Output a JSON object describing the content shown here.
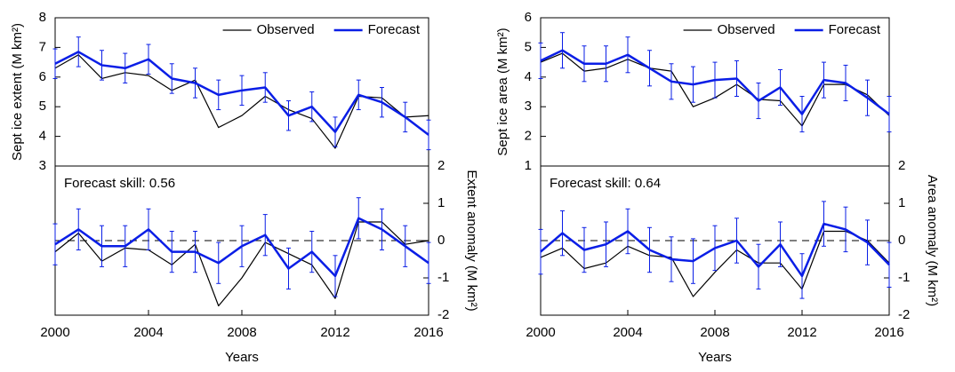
{
  "chart_data": [
    {
      "type": "line",
      "ylabel": "Sept ice extent (M km²)",
      "x": [
        2000,
        2001,
        2002,
        2003,
        2004,
        2005,
        2006,
        2007,
        2008,
        2009,
        2010,
        2011,
        2012,
        2013,
        2014,
        2015,
        2016
      ],
      "xlim": [
        2000,
        2016
      ],
      "ylim": [
        3,
        8
      ],
      "yticks": [
        3,
        4,
        5,
        6,
        7,
        8
      ],
      "legend": "upper right",
      "series": [
        {
          "name": "Observed",
          "color": "#000000",
          "values": [
            6.3,
            6.75,
            5.95,
            6.15,
            6.05,
            5.55,
            5.9,
            4.3,
            4.7,
            5.35,
            4.9,
            4.6,
            3.6,
            5.35,
            5.3,
            4.65,
            4.7
          ]
        },
        {
          "name": "Forecast",
          "color": "#0a1ee6",
          "values": [
            6.45,
            6.85,
            6.4,
            6.3,
            6.6,
            5.95,
            5.8,
            5.4,
            5.55,
            5.65,
            4.7,
            5.0,
            4.15,
            5.4,
            5.15,
            4.65,
            4.05
          ],
          "errors": [
            0.5,
            0.5,
            0.5,
            0.5,
            0.5,
            0.5,
            0.5,
            0.5,
            0.5,
            0.5,
            0.5,
            0.5,
            0.5,
            0.5,
            0.5,
            0.5,
            0.5
          ]
        }
      ]
    },
    {
      "type": "line",
      "ylabel": "Extent anomaly (M km²)",
      "xlabel": "Years",
      "annotation": "Forecast skill: 0.56",
      "x": [
        2000,
        2001,
        2002,
        2003,
        2004,
        2005,
        2006,
        2007,
        2008,
        2009,
        2010,
        2011,
        2012,
        2013,
        2014,
        2015,
        2016
      ],
      "xlim": [
        2000,
        2016
      ],
      "xticks": [
        2000,
        2004,
        2008,
        2012,
        2016
      ],
      "ylim": [
        -2,
        2
      ],
      "yticks": [
        -2,
        -1,
        0,
        1,
        2
      ],
      "hline": 0,
      "series": [
        {
          "color": "#000000",
          "values": [
            -0.3,
            0.2,
            -0.55,
            -0.2,
            -0.25,
            -0.65,
            -0.1,
            -1.75,
            -1.0,
            -0.05,
            -0.35,
            -0.65,
            -1.55,
            0.5,
            0.5,
            -0.1,
            0.0
          ]
        },
        {
          "color": "#0a1ee6",
          "values": [
            -0.1,
            0.3,
            -0.15,
            -0.15,
            0.3,
            -0.3,
            -0.3,
            -0.6,
            -0.15,
            0.15,
            -0.75,
            -0.3,
            -0.95,
            0.6,
            0.3,
            -0.15,
            -0.6
          ],
          "errors": [
            0.55,
            0.55,
            0.55,
            0.55,
            0.55,
            0.55,
            0.55,
            0.55,
            0.55,
            0.55,
            0.55,
            0.55,
            0.55,
            0.55,
            0.55,
            0.55,
            0.55
          ]
        }
      ]
    },
    {
      "type": "line",
      "ylabel": "Sept ice area (M km²)",
      "x": [
        2000,
        2001,
        2002,
        2003,
        2004,
        2005,
        2006,
        2007,
        2008,
        2009,
        2010,
        2011,
        2012,
        2013,
        2014,
        2015,
        2016
      ],
      "xlim": [
        2000,
        2016
      ],
      "ylim": [
        1,
        6
      ],
      "yticks": [
        1,
        2,
        3,
        4,
        5,
        6
      ],
      "legend": "upper right",
      "series": [
        {
          "name": "Observed",
          "color": "#000000",
          "values": [
            4.5,
            4.8,
            4.2,
            4.3,
            4.6,
            4.3,
            4.2,
            3.0,
            3.3,
            3.75,
            3.25,
            3.2,
            2.35,
            3.75,
            3.75,
            3.4,
            2.7
          ]
        },
        {
          "name": "Forecast",
          "color": "#0a1ee6",
          "values": [
            4.55,
            4.9,
            4.45,
            4.45,
            4.75,
            4.3,
            3.85,
            3.75,
            3.9,
            3.95,
            3.2,
            3.65,
            2.75,
            3.9,
            3.8,
            3.3,
            2.75
          ],
          "errors": [
            0.6,
            0.6,
            0.6,
            0.6,
            0.6,
            0.6,
            0.6,
            0.6,
            0.6,
            0.6,
            0.6,
            0.6,
            0.6,
            0.6,
            0.6,
            0.6,
            0.6
          ]
        }
      ]
    },
    {
      "type": "line",
      "ylabel": "Area anomaly (M km²)",
      "xlabel": "Years",
      "annotation": "Forecast skill: 0.64",
      "x": [
        2000,
        2001,
        2002,
        2003,
        2004,
        2005,
        2006,
        2007,
        2008,
        2009,
        2010,
        2011,
        2012,
        2013,
        2014,
        2015,
        2016
      ],
      "xlim": [
        2000,
        2016
      ],
      "xticks": [
        2000,
        2004,
        2008,
        2012,
        2016
      ],
      "ylim": [
        -2,
        2
      ],
      "yticks": [
        -2,
        -1,
        0,
        1,
        2
      ],
      "hline": 0,
      "series": [
        {
          "color": "#000000",
          "values": [
            -0.45,
            -0.2,
            -0.75,
            -0.6,
            -0.15,
            -0.4,
            -0.45,
            -1.5,
            -0.85,
            -0.25,
            -0.6,
            -0.6,
            -1.3,
            0.25,
            0.25,
            0.0,
            -0.6
          ]
        },
        {
          "color": "#0a1ee6",
          "values": [
            -0.3,
            0.2,
            -0.25,
            -0.1,
            0.25,
            -0.25,
            -0.5,
            -0.55,
            -0.2,
            0.0,
            -0.7,
            -0.1,
            -0.95,
            0.45,
            0.3,
            -0.05,
            -0.65
          ],
          "errors": [
            0.6,
            0.6,
            0.6,
            0.6,
            0.6,
            0.6,
            0.6,
            0.6,
            0.6,
            0.6,
            0.6,
            0.6,
            0.6,
            0.6,
            0.6,
            0.6,
            0.6
          ]
        }
      ]
    }
  ]
}
